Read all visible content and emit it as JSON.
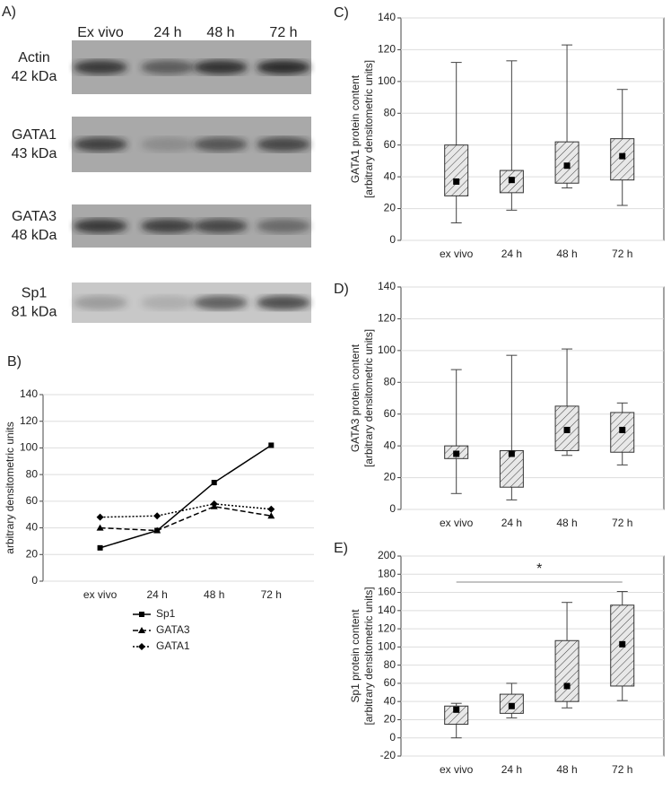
{
  "blot": {
    "label": "A)",
    "lanes": [
      "Ex vivo",
      "24 h",
      "48 h",
      "72 h"
    ],
    "rows": [
      {
        "protein": "Actin",
        "size": "42 kDa"
      },
      {
        "protein": "GATA1",
        "size": "43 kDa"
      },
      {
        "protein": "GATA3",
        "size": "48 kDa"
      },
      {
        "protein": "Sp1",
        "size": "81 kDa"
      }
    ]
  },
  "chart_data": [
    {
      "type": "line",
      "label": "B)",
      "ylabel": [
        "arbitrary densitometric units"
      ],
      "categories": [
        "ex vivo",
        "24 h",
        "48 h",
        "72 h"
      ],
      "ylim": [
        0,
        140
      ],
      "yticks": [
        0,
        20,
        40,
        60,
        80,
        100,
        120,
        140
      ],
      "series": [
        {
          "name": "Sp1",
          "color": "#000000",
          "dash": "solid",
          "marker": "square",
          "values": [
            25,
            38,
            74,
            102
          ]
        },
        {
          "name": "GATA3",
          "color": "#000000",
          "dash": "dashed",
          "marker": "triangle",
          "values": [
            40,
            38,
            56,
            49
          ]
        },
        {
          "name": "GATA1",
          "color": "#000000",
          "dash": "dotted",
          "marker": "diamond",
          "values": [
            48,
            49,
            58,
            54
          ]
        }
      ]
    },
    {
      "type": "box",
      "label": "C)",
      "ylabel": [
        "GATA1 protein content",
        "[arbitrary densitometric units]"
      ],
      "categories": [
        "ex vivo",
        "24 h",
        "48 h",
        "72 h"
      ],
      "ylim": [
        0,
        140
      ],
      "yticks": [
        0,
        20,
        40,
        60,
        80,
        100,
        120,
        140
      ],
      "grid": true,
      "whisker_low": [
        11,
        19,
        33,
        22
      ],
      "q1": [
        28,
        30,
        36,
        38
      ],
      "median": [
        37,
        38,
        47,
        53
      ],
      "q3": [
        60,
        44,
        62,
        64
      ],
      "whisker_high": [
        112,
        113,
        123,
        95
      ]
    },
    {
      "type": "box",
      "label": "D)",
      "ylabel": [
        "GATA3 protein content",
        "[arbitrary densitometric units]"
      ],
      "categories": [
        "ex vivo",
        "24 h",
        "48 h",
        "72 h"
      ],
      "ylim": [
        0,
        140
      ],
      "yticks": [
        0,
        20,
        40,
        60,
        80,
        100,
        120,
        140
      ],
      "grid": true,
      "whisker_low": [
        10,
        6,
        34,
        28
      ],
      "q1": [
        32,
        14,
        37,
        36
      ],
      "median": [
        35,
        35,
        50,
        50
      ],
      "q3": [
        40,
        37,
        65,
        61
      ],
      "whisker_high": [
        88,
        97,
        101,
        67
      ]
    },
    {
      "type": "box",
      "label": "E)",
      "ylabel": [
        "Sp1 protein content",
        "[arbitrary densitometric units]"
      ],
      "categories": [
        "ex vivo",
        "24 h",
        "48 h",
        "72 h"
      ],
      "ylim": [
        -20,
        200
      ],
      "yticks": [
        -20,
        0,
        20,
        40,
        60,
        80,
        100,
        120,
        140,
        160,
        180,
        200
      ],
      "grid": true,
      "whisker_low": [
        0,
        22,
        33,
        41
      ],
      "q1": [
        15,
        27,
        40,
        57
      ],
      "median": [
        31,
        35,
        57,
        103
      ],
      "q3": [
        35,
        48,
        107,
        146
      ],
      "whisker_high": [
        38,
        60,
        149,
        161
      ],
      "annotation": "*"
    }
  ]
}
